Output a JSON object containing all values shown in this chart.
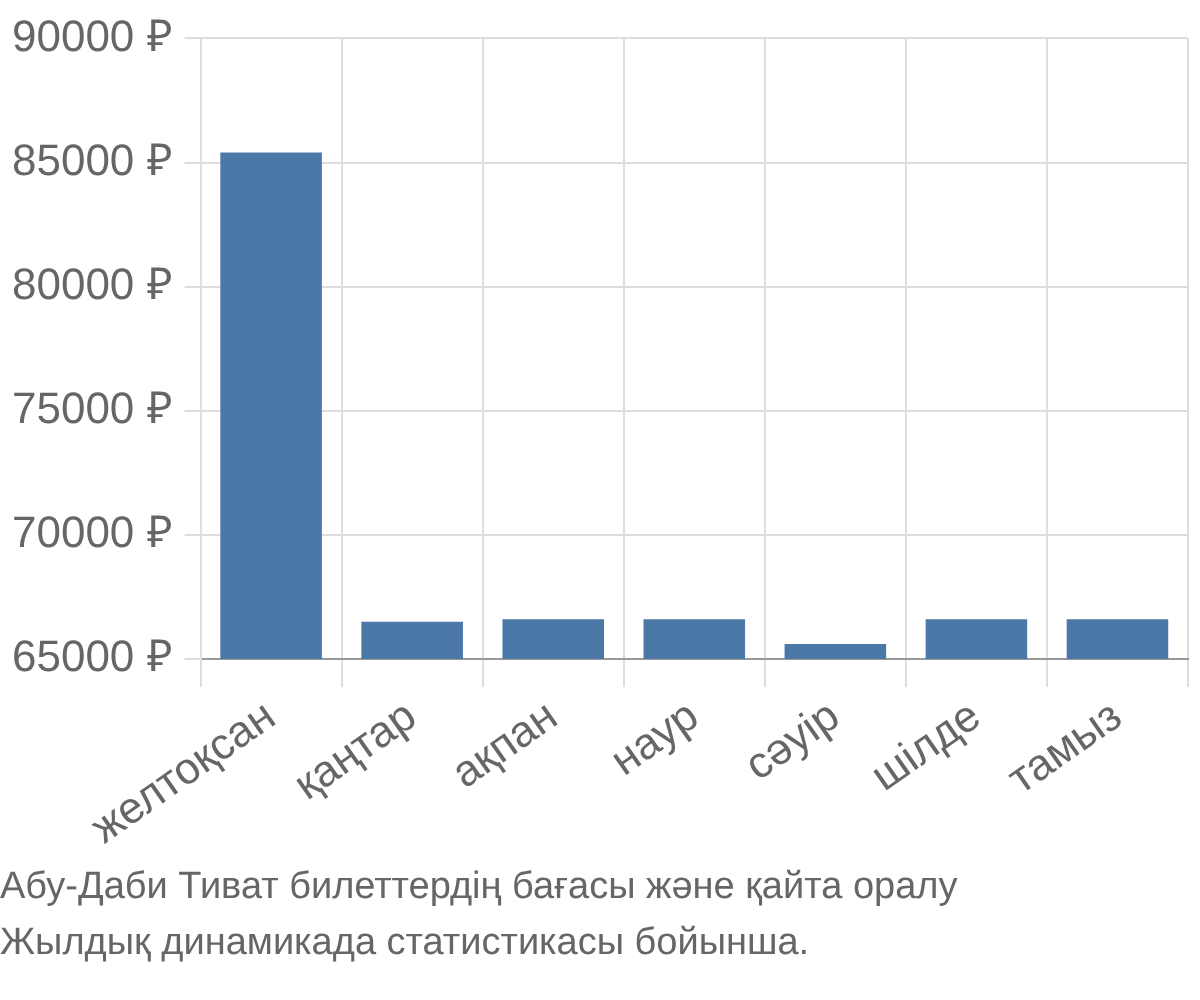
{
  "chart_data": {
    "type": "bar",
    "categories": [
      "желтоқсан",
      "қаңтар",
      "ақпан",
      "наур",
      "сәуір",
      "шілде",
      "тамыз"
    ],
    "values": [
      85400,
      66500,
      66600,
      66600,
      65600,
      66600,
      66600
    ],
    "color": "#4c78a8",
    "ylim": [
      65000,
      90000
    ],
    "yticks": [
      {
        "value": 65000,
        "label": "65000 ₽"
      },
      {
        "value": 70000,
        "label": "70000 ₽"
      },
      {
        "value": 75000,
        "label": "75000 ₽"
      },
      {
        "value": 80000,
        "label": "80000 ₽"
      },
      {
        "value": 85000,
        "label": "85000 ₽"
      },
      {
        "value": 90000,
        "label": "90000 ₽"
      }
    ],
    "grid": true,
    "legend": false,
    "annotations": [
      "Абу-Даби Тиват билеттердің бағасы және қайта оралу",
      "Жылдық динамикада статистикасы бойынша."
    ]
  }
}
